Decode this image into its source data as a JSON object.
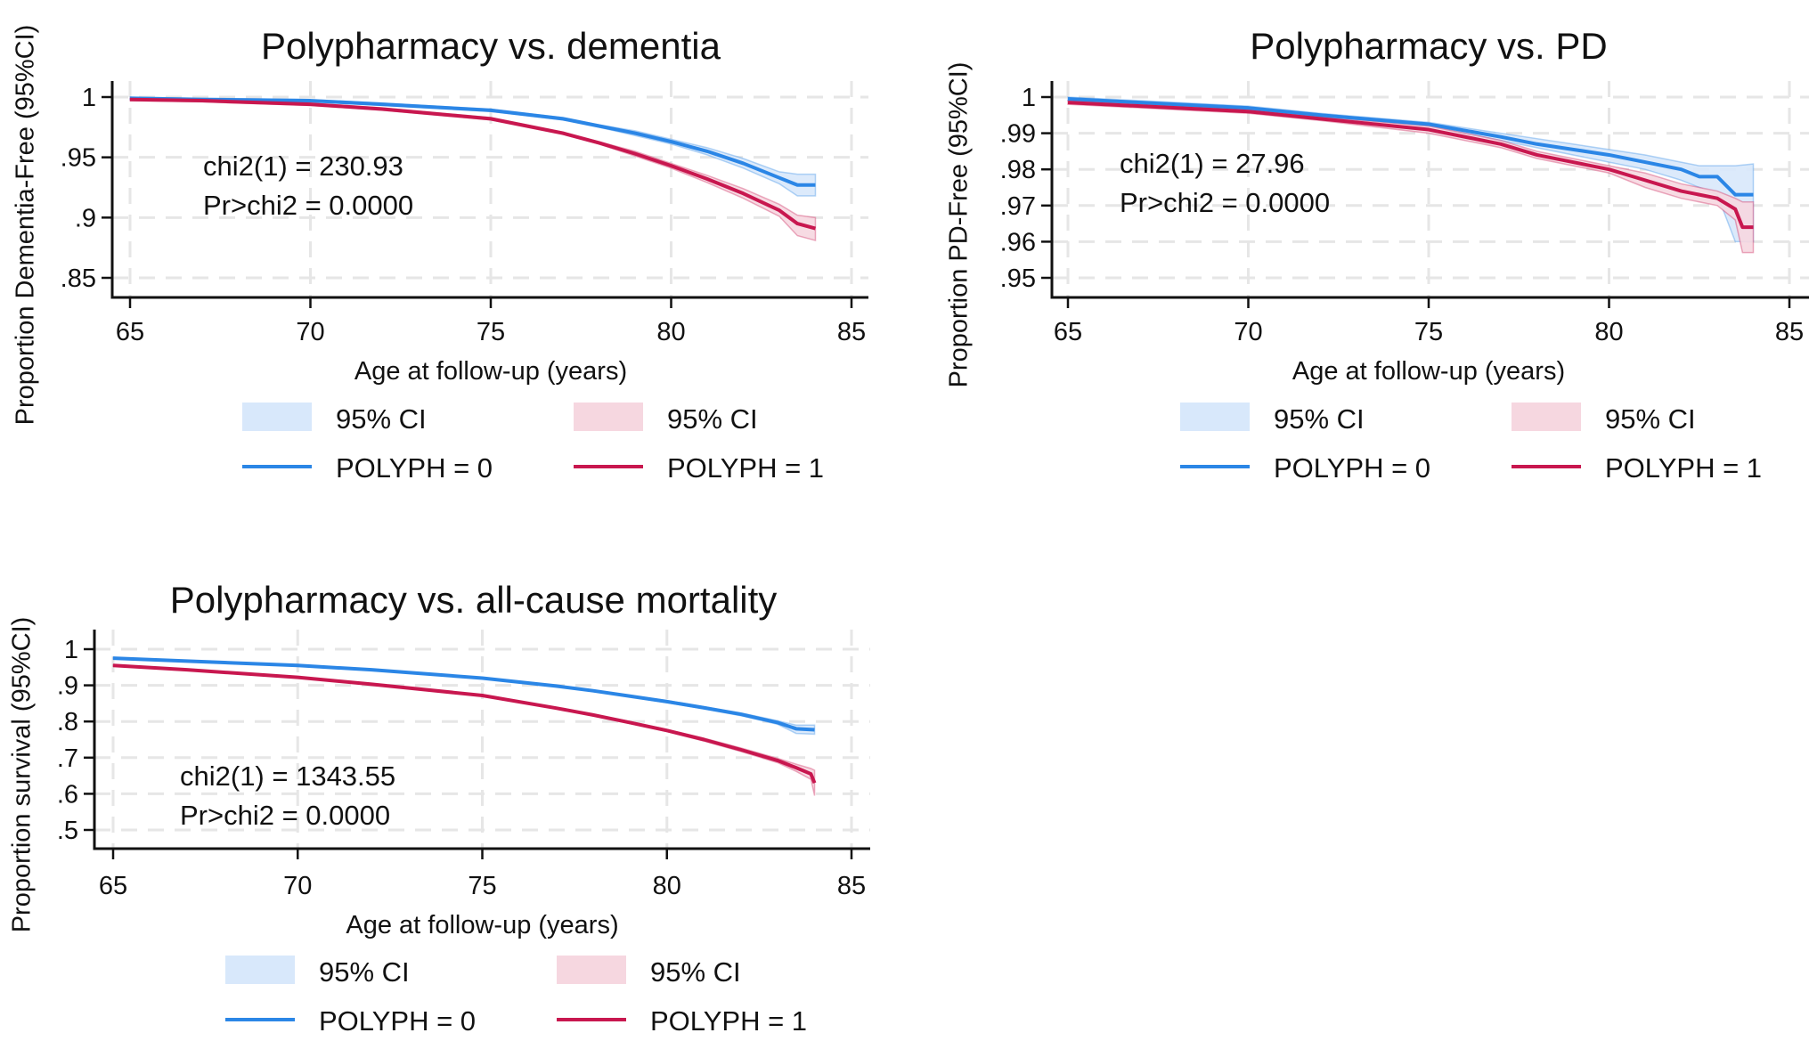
{
  "colors": {
    "blue": "#2b86e6",
    "red": "#c8174f",
    "blue_ci": "#d8e8fb",
    "red_ci": "#f6d7e0",
    "grid": "#e6e6e6"
  },
  "chart_data": [
    {
      "type": "line",
      "title": "Polypharmacy vs. dementia",
      "xlabel": "Age at follow-up (years)",
      "ylabel": "Proportion Dementia-Free (95%CI)",
      "xlim": [
        65,
        85
      ],
      "ylim": [
        0.85,
        1
      ],
      "xticks": [
        "65",
        "70",
        "75",
        "80",
        "85"
      ],
      "xtick_values": [
        65,
        70,
        75,
        80,
        85
      ],
      "yticks": [
        ".85",
        ".9",
        ".95",
        "1"
      ],
      "ytick_values": [
        0.85,
        0.9,
        0.95,
        1
      ],
      "grid": true,
      "annotation": [
        "chi2(1) = 230.93",
        "Pr>chi2 = 0.0000"
      ],
      "legend": {
        "ci0": "95% CI",
        "ci1": "95% CI",
        "s0": "POLYPH = 0",
        "s1": "POLYPH = 1",
        "placement": "bottom"
      },
      "series": [
        {
          "name": "POLYPH = 0",
          "color": "blue",
          "x": [
            65,
            67,
            70,
            72,
            75,
            77,
            78,
            79,
            80,
            81,
            82,
            83,
            83.5,
            84
          ],
          "y": [
            0.999,
            0.998,
            0.997,
            0.994,
            0.989,
            0.982,
            0.976,
            0.97,
            0.963,
            0.955,
            0.945,
            0.933,
            0.927,
            0.927
          ],
          "lower": [
            0.998,
            0.997,
            0.996,
            0.993,
            0.988,
            0.981,
            0.975,
            0.968,
            0.961,
            0.952,
            0.941,
            0.928,
            0.918,
            0.918
          ],
          "upper": [
            1.0,
            0.999,
            0.998,
            0.995,
            0.99,
            0.983,
            0.977,
            0.972,
            0.965,
            0.958,
            0.949,
            0.938,
            0.936,
            0.936
          ]
        },
        {
          "name": "POLYPH = 1",
          "color": "red",
          "x": [
            65,
            67,
            70,
            72,
            75,
            77,
            78,
            79,
            80,
            81,
            82,
            83,
            83.5,
            84
          ],
          "y": [
            0.998,
            0.997,
            0.994,
            0.99,
            0.982,
            0.97,
            0.962,
            0.953,
            0.943,
            0.932,
            0.92,
            0.906,
            0.895,
            0.891
          ],
          "lower": [
            0.997,
            0.996,
            0.993,
            0.989,
            0.981,
            0.969,
            0.961,
            0.951,
            0.941,
            0.929,
            0.916,
            0.901,
            0.885,
            0.881
          ],
          "upper": [
            0.999,
            0.998,
            0.995,
            0.991,
            0.983,
            0.971,
            0.963,
            0.955,
            0.945,
            0.935,
            0.924,
            0.911,
            0.902,
            0.9
          ]
        }
      ]
    },
    {
      "type": "line",
      "title": "Polypharmacy vs. PD",
      "xlabel": "Age at follow-up (years)",
      "ylabel": "Proportion PD-Free (95%CI)",
      "xlim": [
        65,
        85
      ],
      "ylim": [
        0.95,
        1
      ],
      "xticks": [
        "65",
        "70",
        "75",
        "80",
        "85"
      ],
      "xtick_values": [
        65,
        70,
        75,
        80,
        85
      ],
      "yticks": [
        ".95",
        ".96",
        ".97",
        ".98",
        ".99",
        "1"
      ],
      "ytick_values": [
        0.95,
        0.96,
        0.97,
        0.98,
        0.99,
        1
      ],
      "grid": true,
      "annotation": [
        "chi2(1) =  27.96",
        "Pr>chi2 = 0.0000"
      ],
      "legend": {
        "ci0": "95% CI",
        "ci1": "95% CI",
        "s0": "POLYPH = 0",
        "s1": "POLYPH = 1",
        "placement": "bottom"
      },
      "series": [
        {
          "name": "POLYPH = 0",
          "color": "blue",
          "x": [
            65,
            67,
            70,
            72,
            75,
            77,
            78,
            79,
            80,
            81,
            82,
            82.5,
            83,
            83.5,
            84
          ],
          "y": [
            0.9995,
            0.9985,
            0.997,
            0.995,
            0.9925,
            0.989,
            0.987,
            0.9855,
            0.984,
            0.982,
            0.98,
            0.978,
            0.978,
            0.973,
            0.973
          ],
          "lower": [
            0.999,
            0.998,
            0.9965,
            0.9945,
            0.992,
            0.988,
            0.986,
            0.984,
            0.982,
            0.98,
            0.977,
            0.975,
            0.973,
            0.96,
            0.96
          ],
          "upper": [
            1.0,
            0.999,
            0.9975,
            0.9955,
            0.993,
            0.99,
            0.9885,
            0.987,
            0.9855,
            0.984,
            0.982,
            0.981,
            0.981,
            0.981,
            0.9815
          ]
        },
        {
          "name": "POLYPH = 1",
          "color": "red",
          "x": [
            65,
            67,
            70,
            72,
            75,
            77,
            78,
            79,
            80,
            81,
            82,
            83,
            83.5,
            83.7,
            84
          ],
          "y": [
            0.9985,
            0.9975,
            0.996,
            0.994,
            0.991,
            0.987,
            0.984,
            0.982,
            0.98,
            0.977,
            0.974,
            0.972,
            0.969,
            0.964,
            0.964
          ],
          "lower": [
            0.998,
            0.997,
            0.9955,
            0.9935,
            0.99,
            0.986,
            0.983,
            0.981,
            0.979,
            0.975,
            0.972,
            0.97,
            0.966,
            0.957,
            0.957
          ],
          "upper": [
            0.999,
            0.998,
            0.9965,
            0.9945,
            0.992,
            0.988,
            0.985,
            0.983,
            0.981,
            0.979,
            0.976,
            0.974,
            0.972,
            0.971,
            0.971
          ]
        }
      ]
    },
    {
      "type": "line",
      "title": "Polypharmacy vs. all-cause mortality",
      "xlabel": "Age at follow-up (years)",
      "ylabel": "Proportion survival (95%CI)",
      "xlim": [
        65,
        85
      ],
      "ylim": [
        0.5,
        1
      ],
      "xticks": [
        "65",
        "70",
        "75",
        "80",
        "85"
      ],
      "xtick_values": [
        65,
        70,
        75,
        80,
        85
      ],
      "yticks": [
        ".5",
        ".6",
        ".7",
        ".8",
        ".9",
        "1"
      ],
      "ytick_values": [
        0.5,
        0.6,
        0.7,
        0.8,
        0.9,
        1
      ],
      "grid": true,
      "annotation": [
        "chi2(1) = 1343.55",
        "Pr>chi2 =  0.0000"
      ],
      "legend": {
        "ci0": "95% CI",
        "ci1": "95% CI",
        "s0": "POLYPH = 0",
        "s1": "POLYPH = 1",
        "placement": "bottom"
      },
      "series": [
        {
          "name": "POLYPH = 0",
          "color": "blue",
          "x": [
            65,
            67,
            70,
            72,
            75,
            77,
            78,
            79,
            80,
            81,
            82,
            83,
            83.5,
            84
          ],
          "y": [
            0.975,
            0.967,
            0.955,
            0.943,
            0.92,
            0.898,
            0.885,
            0.87,
            0.855,
            0.838,
            0.82,
            0.797,
            0.78,
            0.777
          ],
          "lower": [
            0.973,
            0.965,
            0.953,
            0.941,
            0.918,
            0.896,
            0.883,
            0.868,
            0.852,
            0.835,
            0.816,
            0.792,
            0.767,
            0.765
          ],
          "upper": [
            0.977,
            0.969,
            0.957,
            0.945,
            0.922,
            0.9,
            0.887,
            0.872,
            0.858,
            0.841,
            0.824,
            0.802,
            0.79,
            0.79
          ]
        },
        {
          "name": "POLYPH = 1",
          "color": "red",
          "x": [
            65,
            67,
            70,
            72,
            75,
            77,
            78,
            79,
            80,
            81,
            82,
            83,
            83.5,
            83.9,
            84
          ],
          "y": [
            0.955,
            0.943,
            0.922,
            0.903,
            0.872,
            0.837,
            0.818,
            0.797,
            0.775,
            0.75,
            0.722,
            0.692,
            0.672,
            0.655,
            0.63
          ],
          "lower": [
            0.953,
            0.941,
            0.92,
            0.901,
            0.87,
            0.835,
            0.816,
            0.794,
            0.772,
            0.746,
            0.717,
            0.686,
            0.662,
            0.64,
            0.595
          ],
          "upper": [
            0.957,
            0.945,
            0.924,
            0.905,
            0.874,
            0.839,
            0.82,
            0.8,
            0.778,
            0.754,
            0.727,
            0.698,
            0.682,
            0.67,
            0.665
          ]
        }
      ]
    }
  ]
}
